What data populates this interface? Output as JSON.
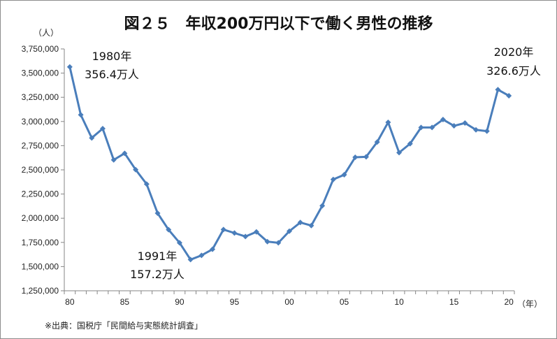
{
  "chart_data": {
    "type": "line",
    "title": "図２５　年収200万円以下で働く男性の推移",
    "ylabel": "（人）",
    "xlabel": "（年）",
    "ylim": [
      1250000,
      3750000
    ],
    "yticks": [
      "1,250,000",
      "1,500,000",
      "1,750,000",
      "2,000,000",
      "2,250,000",
      "2,500,000",
      "2,750,000",
      "3,000,000",
      "3,250,000",
      "3,500,000",
      "3,750,000"
    ],
    "xtick_labels": [
      "80",
      "85",
      "90",
      "95",
      "00",
      "05",
      "10",
      "15",
      "20"
    ],
    "x": [
      1980,
      1981,
      1982,
      1983,
      1984,
      1985,
      1986,
      1987,
      1988,
      1989,
      1990,
      1991,
      1992,
      1993,
      1994,
      1995,
      1996,
      1997,
      1998,
      1999,
      2000,
      2001,
      2002,
      2003,
      2004,
      2005,
      2006,
      2007,
      2008,
      2009,
      2010,
      2011,
      2012,
      2013,
      2014,
      2015,
      2016,
      2017,
      2018,
      2019,
      2020
    ],
    "values": [
      3564000,
      3069000,
      2830000,
      2926000,
      2603000,
      2671000,
      2502000,
      2353000,
      2052000,
      1881000,
      1746000,
      1572000,
      1616000,
      1679000,
      1883000,
      1847000,
      1811000,
      1859000,
      1758000,
      1746000,
      1866000,
      1956000,
      1924000,
      2129000,
      2401000,
      2449000,
      2630000,
      2635000,
      2787000,
      2991000,
      2678000,
      2770000,
      2938000,
      2938000,
      3020000,
      2955000,
      2984000,
      2914000,
      2900000,
      3329000,
      3266000
    ],
    "line_color": "#4a7ebb",
    "grid": false,
    "annotations": [
      {
        "year": "1980年",
        "value": "356.4万人"
      },
      {
        "year": "1991年",
        "value": "157.2万人"
      },
      {
        "year": "2020年",
        "value": "326.6万人"
      }
    ]
  },
  "source": "※出典：国税庁「民間給与実態統計調査」"
}
